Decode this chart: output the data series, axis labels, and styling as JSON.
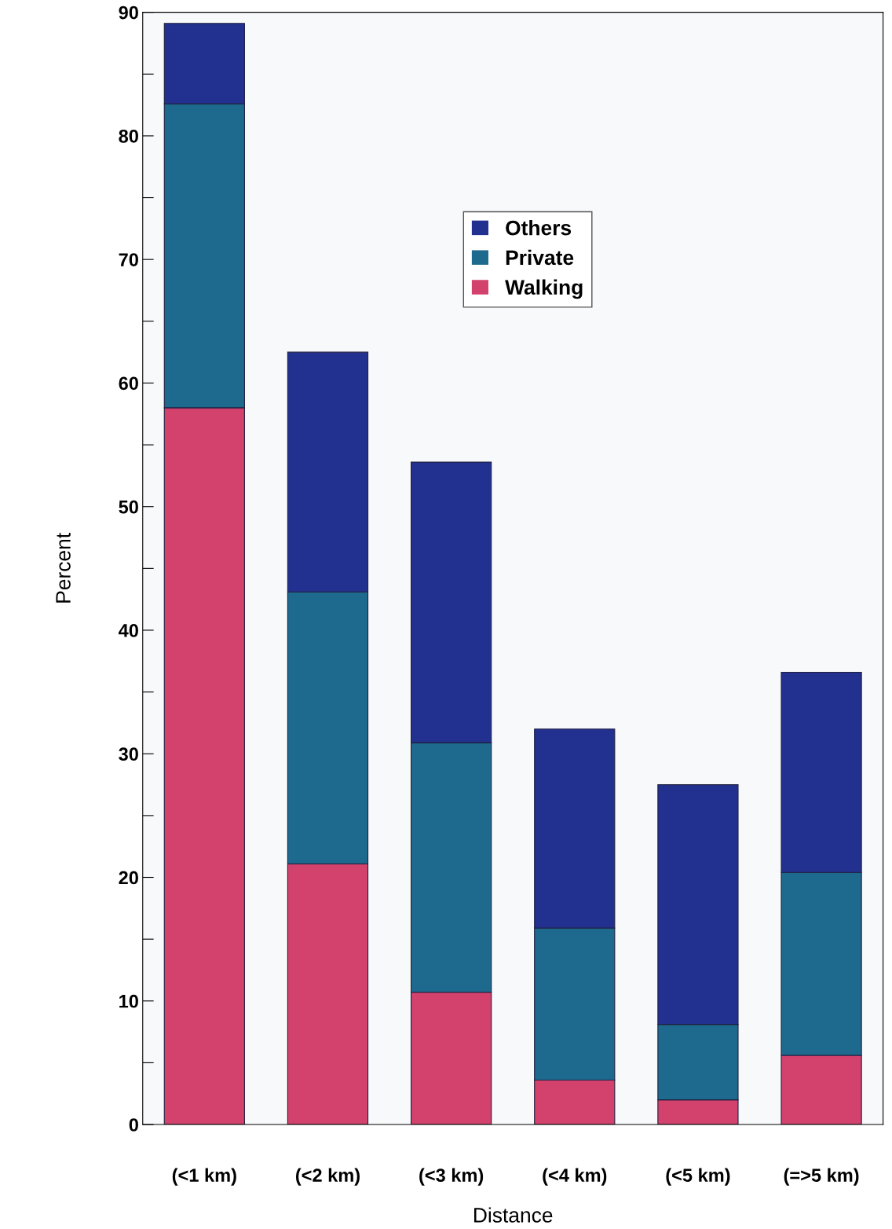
{
  "chart_data": {
    "type": "bar",
    "stacked": true,
    "xlabel": "Distance",
    "ylabel": "Percent",
    "categories": [
      "(<1 km)",
      "(<2 km)",
      "(<3 km)",
      "(<4 km)",
      "(<5 km)",
      "(=>5 km)"
    ],
    "series": [
      {
        "name": "Walking",
        "color": "#d2426c",
        "values": [
          58.0,
          21.1,
          10.7,
          3.6,
          2.0,
          5.6
        ]
      },
      {
        "name": "Private",
        "color": "#1e6a8e",
        "values": [
          24.6,
          22.0,
          20.2,
          12.3,
          6.1,
          14.8
        ]
      },
      {
        "name": "Others",
        "color": "#22318f",
        "values": [
          6.5,
          19.4,
          22.7,
          16.1,
          19.4,
          16.2
        ]
      }
    ],
    "ylim": [
      0,
      90
    ],
    "yticks": [
      0,
      {
        "value": 5,
        "label": null
      },
      10,
      {
        "value": 15,
        "label": null
      },
      20,
      {
        "value": 25,
        "label": null
      },
      30,
      {
        "value": 35,
        "label": null
      },
      40,
      {
        "value": 45,
        "label": null
      },
      50,
      {
        "value": 55,
        "label": null
      },
      60,
      {
        "value": 65,
        "label": null
      },
      70,
      {
        "value": 75,
        "label": null
      },
      80,
      {
        "value": 85,
        "label": null
      },
      90
    ],
    "legend": "top",
    "grid": false
  }
}
